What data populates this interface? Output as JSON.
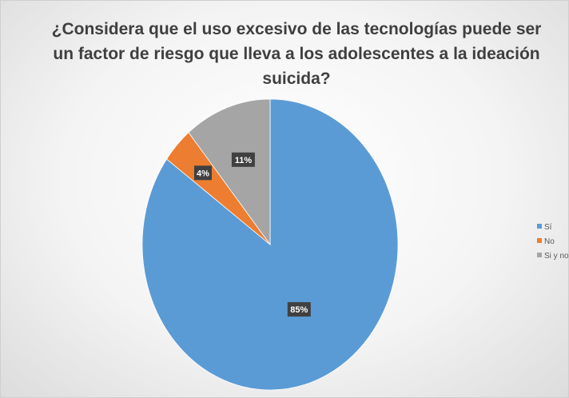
{
  "chart_data": {
    "type": "pie",
    "title": "¿Considera que el uso excesivo de las tecnologías puede ser un factor de riesgo que lleva a los adolescentes a la ideación suicida?",
    "categories": [
      "Sí",
      "No",
      "Si y no"
    ],
    "values": [
      85,
      4,
      11
    ],
    "data_labels": [
      "85%",
      "4%",
      "11%"
    ],
    "colors": [
      "#5B9BD5",
      "#ED7D31",
      "#A5A5A5"
    ],
    "start_angle_deg": 0,
    "direction": "clockwise",
    "legend": "right"
  }
}
